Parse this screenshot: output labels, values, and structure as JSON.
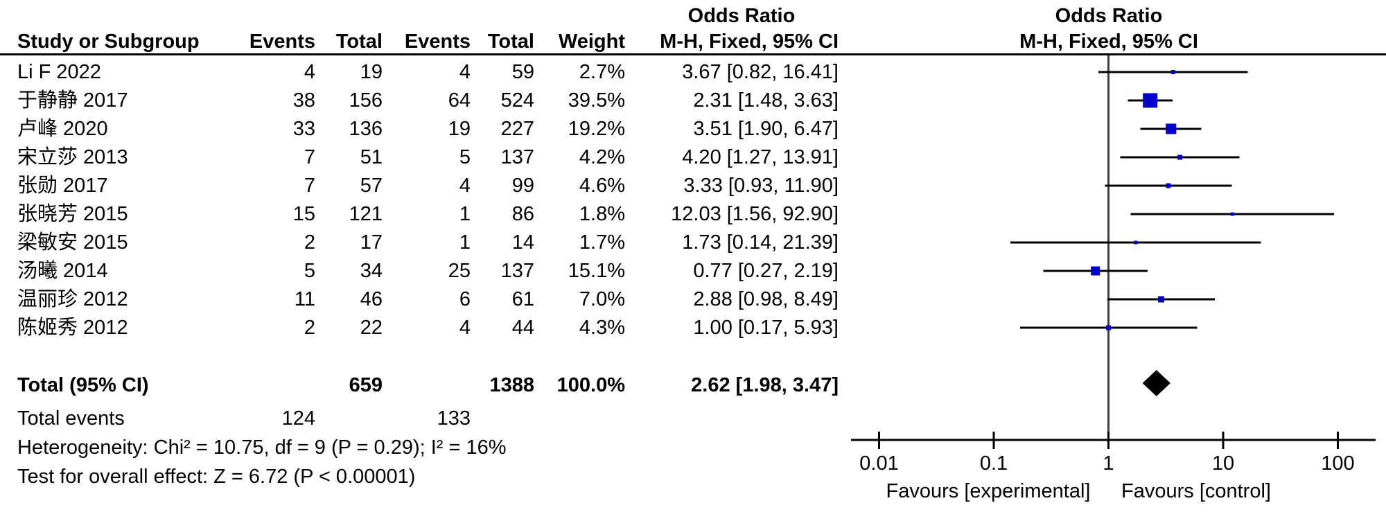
{
  "titles": {
    "or_left": "Odds Ratio",
    "or_right": "Odds Ratio",
    "method_right": "M-H, Fixed, 95% CI"
  },
  "headers": {
    "study": "Study or Subgroup",
    "events1": "Events",
    "total1": "Total",
    "events2": "Events",
    "total2": "Total",
    "weight": "Weight",
    "or_ci": "M-H, Fixed, 95% CI"
  },
  "total_row": {
    "label": "Total (95% CI)",
    "total1": "659",
    "total2": "1388",
    "weight": "100.0%",
    "or_ci": "2.62 [1.98, 3.47]"
  },
  "total_events": {
    "label": "Total events",
    "events1": "124",
    "events2": "133"
  },
  "footnotes": {
    "heterogeneity": "Heterogeneity: Chi² = 10.75, df = 9 (P = 0.29); I² = 16%",
    "overall_effect": "Test for overall effect: Z = 6.72 (P < 0.00001)"
  },
  "chart_data": {
    "type": "scatter",
    "subtype": "forest-plot",
    "effect_measure": "Odds Ratio, M-H, Fixed, 95% CI",
    "x_scale": "log10",
    "x_range": [
      0.01,
      100
    ],
    "x_ticks": [
      "0.01",
      "0.1",
      "1",
      "10",
      "100"
    ],
    "null_line": 1,
    "favours_left": "Favours [experimental]",
    "favours_right": "Favours [control]",
    "marker_color": "#0000CC",
    "line_color": "#000000",
    "diamond_color": "#000000",
    "studies": [
      {
        "study": "Li F 2022",
        "events1": "4",
        "total1": "19",
        "events2": "4",
        "total2": "59",
        "weight": "2.7%",
        "weight_pct": 2.7,
        "or": 3.67,
        "ci_low": 0.82,
        "ci_high": 16.41,
        "or_ci": "3.67 [0.82, 16.41]"
      },
      {
        "study": "于静静 2017",
        "events1": "38",
        "total1": "156",
        "events2": "64",
        "total2": "524",
        "weight": "39.5%",
        "weight_pct": 39.5,
        "or": 2.31,
        "ci_low": 1.48,
        "ci_high": 3.63,
        "or_ci": "2.31 [1.48, 3.63]"
      },
      {
        "study": "卢峰 2020",
        "events1": "33",
        "total1": "136",
        "events2": "19",
        "total2": "227",
        "weight": "19.2%",
        "weight_pct": 19.2,
        "or": 3.51,
        "ci_low": 1.9,
        "ci_high": 6.47,
        "or_ci": "3.51 [1.90, 6.47]"
      },
      {
        "study": "宋立莎 2013",
        "events1": "7",
        "total1": "51",
        "events2": "5",
        "total2": "137",
        "weight": "4.2%",
        "weight_pct": 4.2,
        "or": 4.2,
        "ci_low": 1.27,
        "ci_high": 13.91,
        "or_ci": "4.20 [1.27, 13.91]"
      },
      {
        "study": "张勋 2017",
        "events1": "7",
        "total1": "57",
        "events2": "4",
        "total2": "99",
        "weight": "4.6%",
        "weight_pct": 4.6,
        "or": 3.33,
        "ci_low": 0.93,
        "ci_high": 11.9,
        "or_ci": "3.33 [0.93, 11.90]"
      },
      {
        "study": "张晓芳 2015",
        "events1": "15",
        "total1": "121",
        "events2": "1",
        "total2": "86",
        "weight": "1.8%",
        "weight_pct": 1.8,
        "or": 12.03,
        "ci_low": 1.56,
        "ci_high": 92.9,
        "or_ci": "12.03 [1.56, 92.90]"
      },
      {
        "study": "梁敏安 2015",
        "events1": "2",
        "total1": "17",
        "events2": "1",
        "total2": "14",
        "weight": "1.7%",
        "weight_pct": 1.7,
        "or": 1.73,
        "ci_low": 0.14,
        "ci_high": 21.39,
        "or_ci": "1.73 [0.14, 21.39]"
      },
      {
        "study": "汤曦 2014",
        "events1": "5",
        "total1": "34",
        "events2": "25",
        "total2": "137",
        "weight": "15.1%",
        "weight_pct": 15.1,
        "or": 0.77,
        "ci_low": 0.27,
        "ci_high": 2.19,
        "or_ci": "0.77 [0.27, 2.19]"
      },
      {
        "study": "温丽珍 2012",
        "events1": "11",
        "total1": "46",
        "events2": "6",
        "total2": "61",
        "weight": "7.0%",
        "weight_pct": 7.0,
        "or": 2.88,
        "ci_low": 0.98,
        "ci_high": 8.49,
        "or_ci": "2.88 [0.98, 8.49]"
      },
      {
        "study": "陈姬秀 2012",
        "events1": "2",
        "total1": "22",
        "events2": "4",
        "total2": "44",
        "weight": "4.3%",
        "weight_pct": 4.3,
        "or": 1.0,
        "ci_low": 0.17,
        "ci_high": 5.93,
        "or_ci": "1.00 [0.17, 5.93]"
      }
    ],
    "total": {
      "label": "Total (95% CI)",
      "or": 2.62,
      "ci_low": 1.98,
      "ci_high": 3.47
    }
  }
}
